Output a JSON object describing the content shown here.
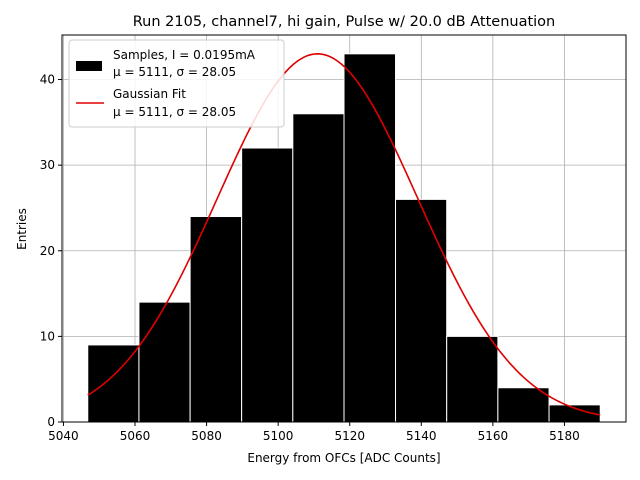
{
  "chart_data": {
    "type": "bar",
    "title": "Run 2105, channel7, hi gain, Pulse w/ 20.0 dB Attenuation",
    "xlabel": "Energy from OFCs [ADC Counts]",
    "ylabel": "Entries",
    "xlim": [
      5039.6,
      5197.2
    ],
    "ylim": [
      0,
      45.2
    ],
    "grid": true,
    "xticks": [
      5040,
      5060,
      5080,
      5100,
      5120,
      5140,
      5160,
      5180
    ],
    "yticks": [
      0,
      10,
      20,
      30,
      40
    ],
    "histogram": {
      "name": "Samples",
      "bin_edges": [
        5046.8,
        5061.1,
        5075.4,
        5089.8,
        5104.1,
        5118.4,
        5132.8,
        5147.1,
        5161.4,
        5175.7,
        5190.0
      ],
      "counts": [
        9,
        14,
        24,
        32,
        36,
        43,
        26,
        10,
        4,
        2
      ],
      "color": "#000000",
      "edge_color": "#ffffff"
    },
    "fit": {
      "name": "Gaussian Fit",
      "mu": 5111,
      "sigma": 28.05,
      "amplitude": 43,
      "x_range": [
        5046.8,
        5190.0
      ],
      "color": "#e00000"
    },
    "legend": {
      "position": "top-left",
      "entries": [
        {
          "line1": "Samples, I = 0.0195mA",
          "line2": "μ = 5111, σ = 28.05"
        },
        {
          "line1": "Gaussian Fit",
          "line2": "μ = 5111, σ = 28.05"
        }
      ]
    }
  }
}
